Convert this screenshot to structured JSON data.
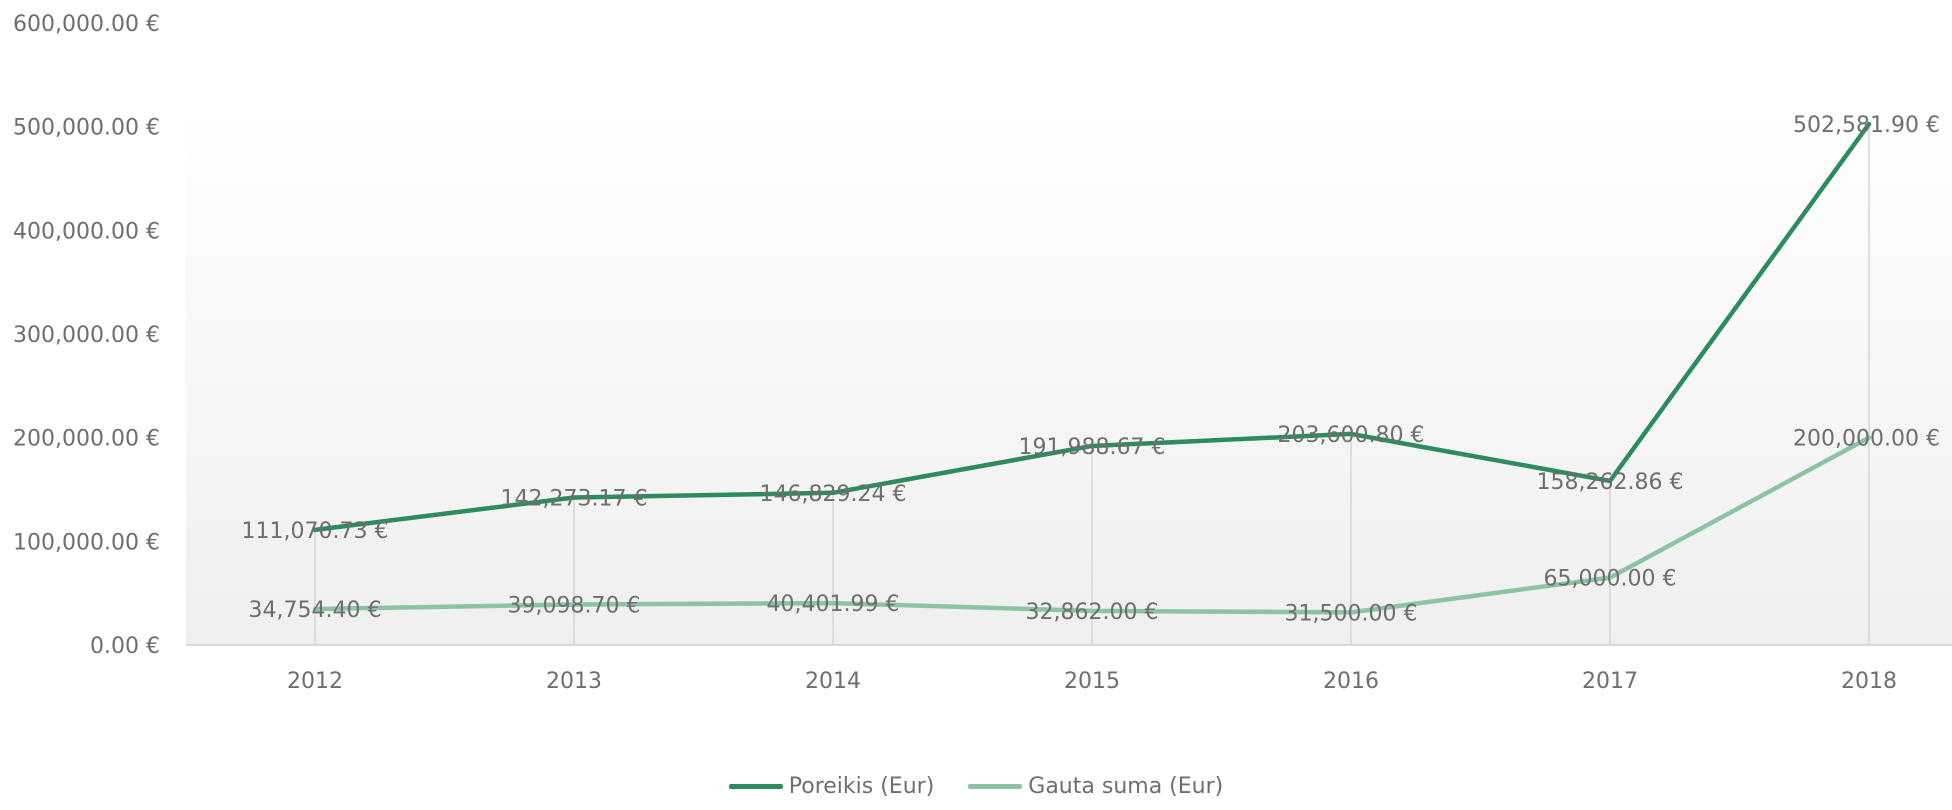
{
  "chart_data": {
    "type": "line",
    "title": "",
    "xlabel": "",
    "ylabel": "",
    "categories": [
      "2012",
      "2013",
      "2014",
      "2015",
      "2016",
      "2017",
      "2018"
    ],
    "ylim": [
      0,
      600000
    ],
    "yticks": [
      {
        "value": 0,
        "label": "0.00 €"
      },
      {
        "value": 100000,
        "label": "100,000.00 €"
      },
      {
        "value": 200000,
        "label": "200,000.00 €"
      },
      {
        "value": 300000,
        "label": "300,000.00 €"
      },
      {
        "value": 400000,
        "label": "400,000.00 €"
      },
      {
        "value": 500000,
        "label": "500,000.00 €"
      },
      {
        "value": 600000,
        "label": "600,000.00 €"
      }
    ],
    "grid": false,
    "legend_position": "bottom",
    "series": [
      {
        "name": "Poreikis (Eur)",
        "color": "#2e8b5e",
        "values": [
          111070.73,
          142273.17,
          146829.24,
          191988.67,
          203600.8,
          158262.86,
          502581.9
        ],
        "labels": [
          "111,070.73 €",
          "142,273.17 €",
          "146,829.24 €",
          "191,988.67 €",
          "203,600.80 €",
          "158,262.86 €",
          "502,581.90 €"
        ]
      },
      {
        "name": "Gauta suma (Eur)",
        "color": "#8cc4a3",
        "values": [
          34754.4,
          39098.7,
          40401.99,
          32862.0,
          31500.0,
          65000.0,
          200000.0
        ],
        "labels": [
          "34,754.40 €",
          "39,098.70 €",
          "40,401.99 €",
          "32,862.00 €",
          "31,500.00 €",
          "65,000.00 €",
          "200,000.00 €"
        ]
      }
    ]
  }
}
